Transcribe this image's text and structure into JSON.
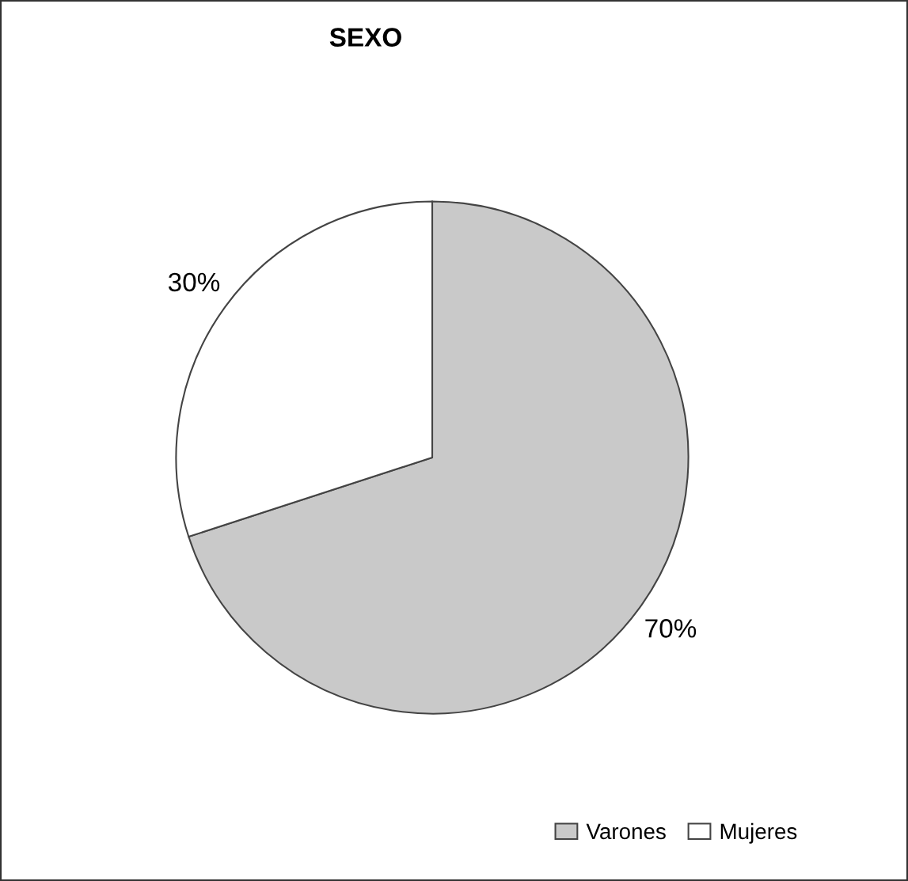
{
  "chart_data": {
    "type": "pie",
    "title": "SEXO",
    "categories": [
      "Varones",
      "Mujeres"
    ],
    "values": [
      70,
      30
    ],
    "colors": [
      "#c9c9c9",
      "#ffffff"
    ],
    "value_labels": [
      "70%",
      "30%"
    ],
    "legend": "bottom right"
  }
}
